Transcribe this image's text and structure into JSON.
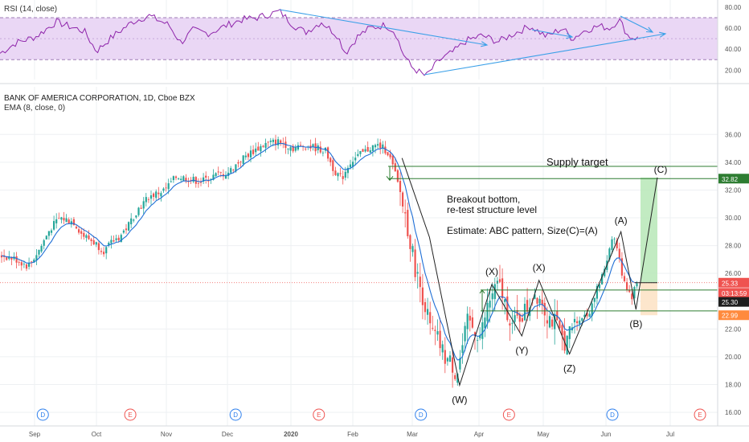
{
  "header": {
    "rsi_title": "RSI (14, close)",
    "main_title": "BANK OF AMERICA CORPORATION, 1D, Cboe BZX",
    "ema_title": "EMA (8, close, 0)"
  },
  "chart_data": {
    "type": "candlestick",
    "symbol": "BANK OF AMERICA CORPORATION, 1D, Cboe BZX",
    "indicators": [
      "RSI (14, close)",
      "EMA (8, close, 0)"
    ],
    "x_ticks": [
      "Sep",
      "Oct",
      "Nov",
      "Dec",
      "2020",
      "Feb",
      "Mar",
      "Apr",
      "May",
      "Jun",
      "Jul"
    ],
    "price_axis": {
      "ticks": [
        16,
        18,
        20,
        22,
        24,
        26,
        28,
        30,
        32,
        34,
        36
      ],
      "ylim": [
        15.6,
        37.0
      ]
    },
    "rsi_axis": {
      "ticks": [
        20,
        40,
        60,
        80
      ],
      "ylim": [
        11,
        83
      ],
      "band": [
        30,
        70
      ]
    },
    "price_badges": [
      {
        "label": "32.82",
        "value": 32.82,
        "color": "#2e7d32"
      },
      {
        "label": "25.33",
        "value": 25.33,
        "color": "#ef5350"
      },
      {
        "label": "03:13:59",
        "value": 24.6,
        "color": "#ef5350"
      },
      {
        "label": "25.30",
        "value": 23.95,
        "color": "#1e1e1e"
      },
      {
        "label": "22.99",
        "value": 22.99,
        "color": "#ff8a3d"
      }
    ],
    "key_levels": {
      "supply": [
        32.82,
        33.7
      ],
      "resistance": 24.8,
      "support": 23.3,
      "last": 25.33
    },
    "wave_pivots": [
      {
        "label": "(W)",
        "date": "2020-03-23",
        "price": 17.95
      },
      {
        "label": "(X)",
        "date": "2020-04-07",
        "price": 25.2
      },
      {
        "label": "(Y)",
        "date": "2020-04-21",
        "price": 21.5
      },
      {
        "label": "(X)",
        "date": "2020-04-29",
        "price": 25.5
      },
      {
        "label": "(Z)",
        "date": "2020-05-14",
        "price": 20.2
      },
      {
        "label": "(A)",
        "date": "2020-06-08",
        "price": 29.0
      },
      {
        "label": "(B)",
        "date": "2020-06-15",
        "price": 23.4
      },
      {
        "label": "(C)",
        "date": "2020-06-25",
        "price": 32.9
      }
    ],
    "annotations": [
      "Supply  target",
      "Breakout bottom,",
      "re-test structure level",
      "Estimate:  ABC pattern,  Size(C)=(A)"
    ],
    "events": [
      {
        "type": "D",
        "date": "2019-09-05"
      },
      {
        "type": "E",
        "date": "2019-10-16"
      },
      {
        "type": "D",
        "date": "2019-12-05"
      },
      {
        "type": "E",
        "date": "2020-01-15"
      },
      {
        "type": "D",
        "date": "2020-03-05"
      },
      {
        "type": "E",
        "date": "2020-04-15"
      },
      {
        "type": "D",
        "date": "2020-06-04"
      },
      {
        "type": "E",
        "date": "2020-07-15"
      }
    ]
  }
}
